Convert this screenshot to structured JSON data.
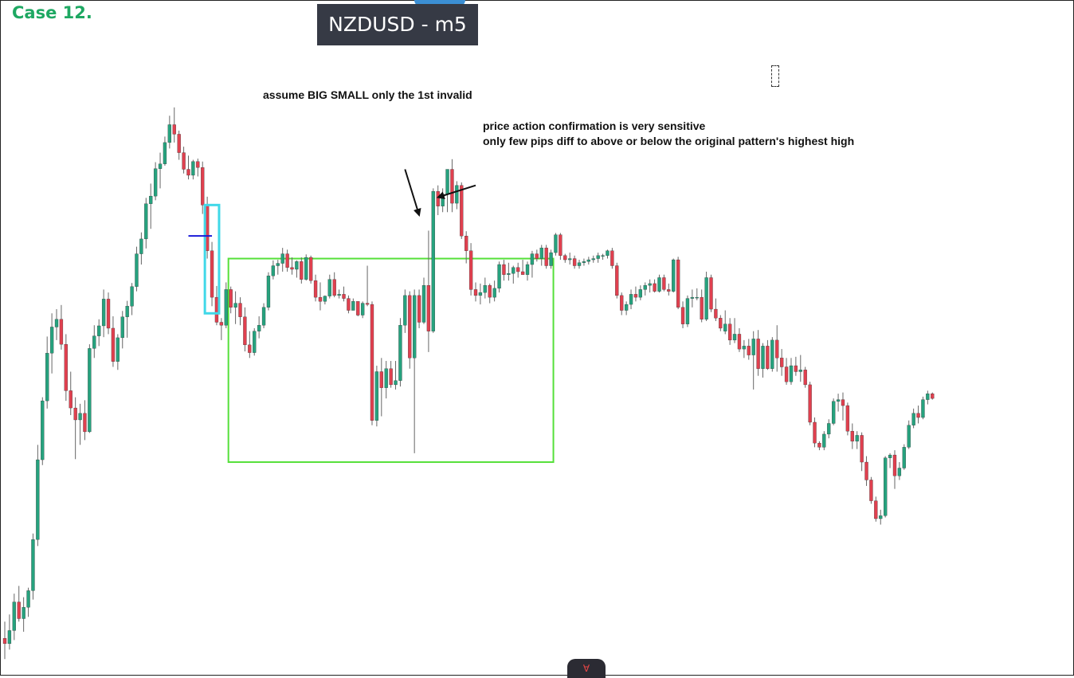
{
  "header": {
    "case_label": "Case 12.",
    "symbol_label": "NZDUSD - m5"
  },
  "annotations": {
    "note_1": "assume BIG SMALL only the 1st invalid",
    "note_2_line_1": "price action confirmation is very sensitive",
    "note_2_line_2": "only few pips diff to above or below the original pattern's highest high"
  },
  "bottom_tab": {
    "icon": "logo-glyph"
  },
  "colors": {
    "bull": "#26a27e",
    "bear": "#e0404f",
    "wick": "#666666",
    "range_box": "#55e03a",
    "highlight_box": "#40d8e8",
    "level_line": "#1a1ad8",
    "case_title": "#1ea862",
    "badge_bg": "#363a45"
  },
  "chart_data": {
    "type": "candlestick",
    "title": "NZDUSD - m5",
    "xlabel": "",
    "ylabel": "",
    "price_axis": "hidden",
    "ylim": [
      0,
      100
    ],
    "candles": [
      {
        "o": 4.8,
        "h": 7.6,
        "l": 1.3,
        "c": 3.9
      },
      {
        "o": 3.9,
        "h": 8.8,
        "l": 2.9,
        "c": 6.1
      },
      {
        "o": 6.1,
        "h": 12.3,
        "l": 4.5,
        "c": 10.9
      },
      {
        "o": 10.9,
        "h": 13.6,
        "l": 7.6,
        "c": 8.1
      },
      {
        "o": 8.1,
        "h": 11.7,
        "l": 5.9,
        "c": 10.0
      },
      {
        "o": 10.0,
        "h": 13.3,
        "l": 8.4,
        "c": 12.8
      },
      {
        "o": 12.8,
        "h": 22.4,
        "l": 11.3,
        "c": 21.4
      },
      {
        "o": 21.4,
        "h": 37.3,
        "l": 20.3,
        "c": 34.8
      },
      {
        "o": 34.8,
        "h": 45.3,
        "l": 33.9,
        "c": 44.7
      },
      {
        "o": 44.7,
        "h": 55.5,
        "l": 43.4,
        "c": 52.7
      },
      {
        "o": 52.7,
        "h": 59.4,
        "l": 49.3,
        "c": 57.1
      },
      {
        "o": 57.1,
        "h": 60.1,
        "l": 54.9,
        "c": 58.4
      },
      {
        "o": 58.4,
        "h": 60.8,
        "l": 53.3,
        "c": 54.2
      },
      {
        "o": 54.2,
        "h": 55.9,
        "l": 44.7,
        "c": 46.4
      },
      {
        "o": 46.4,
        "h": 49.6,
        "l": 42.3,
        "c": 43.5
      },
      {
        "o": 43.5,
        "h": 45.3,
        "l": 34.9,
        "c": 41.5
      },
      {
        "o": 41.5,
        "h": 44.2,
        "l": 37.3,
        "c": 42.6
      },
      {
        "o": 42.6,
        "h": 44.8,
        "l": 38.1,
        "c": 39.5
      },
      {
        "o": 39.5,
        "h": 54.2,
        "l": 39.3,
        "c": 53.5
      },
      {
        "o": 53.5,
        "h": 57.4,
        "l": 51.9,
        "c": 55.6
      },
      {
        "o": 55.6,
        "h": 58.4,
        "l": 53.9,
        "c": 57.3
      },
      {
        "o": 57.3,
        "h": 63.4,
        "l": 55.4,
        "c": 61.8
      },
      {
        "o": 61.8,
        "h": 62.9,
        "l": 55.9,
        "c": 56.9
      },
      {
        "o": 56.9,
        "h": 58.9,
        "l": 50.4,
        "c": 51.3
      },
      {
        "o": 51.3,
        "h": 55.9,
        "l": 49.9,
        "c": 55.3
      },
      {
        "o": 55.3,
        "h": 59.8,
        "l": 53.5,
        "c": 58.8
      },
      {
        "o": 58.8,
        "h": 61.5,
        "l": 55.3,
        "c": 60.6
      },
      {
        "o": 60.6,
        "h": 64.5,
        "l": 59.1,
        "c": 63.9
      },
      {
        "o": 63.9,
        "h": 70.6,
        "l": 63.1,
        "c": 69.4
      },
      {
        "o": 69.4,
        "h": 73.0,
        "l": 67.6,
        "c": 71.9
      },
      {
        "o": 71.9,
        "h": 78.8,
        "l": 70.3,
        "c": 77.8
      },
      {
        "o": 77.8,
        "h": 81.2,
        "l": 73.6,
        "c": 79.1
      },
      {
        "o": 79.1,
        "h": 84.8,
        "l": 78.4,
        "c": 83.7
      },
      {
        "o": 83.7,
        "h": 86.4,
        "l": 80.4,
        "c": 84.5
      },
      {
        "o": 84.5,
        "h": 89.1,
        "l": 84.2,
        "c": 88.1
      },
      {
        "o": 88.1,
        "h": 92.6,
        "l": 87.1,
        "c": 91.1
      },
      {
        "o": 91.1,
        "h": 94.0,
        "l": 88.1,
        "c": 89.5
      },
      {
        "o": 89.5,
        "h": 90.1,
        "l": 85.2,
        "c": 86.4
      },
      {
        "o": 86.4,
        "h": 87.4,
        "l": 82.9,
        "c": 83.6
      },
      {
        "o": 83.6,
        "h": 85.9,
        "l": 81.9,
        "c": 82.6
      },
      {
        "o": 82.6,
        "h": 85.2,
        "l": 81.9,
        "c": 84.9
      },
      {
        "o": 84.9,
        "h": 85.4,
        "l": 82.4,
        "c": 83.9
      },
      {
        "o": 83.9,
        "h": 84.9,
        "l": 76.1,
        "c": 77.6
      },
      {
        "o": 77.6,
        "h": 79.0,
        "l": 68.6,
        "c": 69.9
      },
      {
        "o": 69.9,
        "h": 71.4,
        "l": 60.6,
        "c": 62.1
      },
      {
        "o": 62.1,
        "h": 64.0,
        "l": 57.4,
        "c": 57.9
      },
      {
        "o": 57.9,
        "h": 58.6,
        "l": 54.9,
        "c": 57.4
      },
      {
        "o": 57.4,
        "h": 64.6,
        "l": 56.9,
        "c": 63.4
      },
      {
        "o": 63.4,
        "h": 63.9,
        "l": 59.4,
        "c": 60.4
      },
      {
        "o": 60.4,
        "h": 63.1,
        "l": 57.6,
        "c": 61.1
      },
      {
        "o": 61.1,
        "h": 62.1,
        "l": 57.4,
        "c": 58.8
      },
      {
        "o": 58.8,
        "h": 60.4,
        "l": 53.0,
        "c": 54.1
      },
      {
        "o": 54.1,
        "h": 56.4,
        "l": 51.9,
        "c": 52.8
      },
      {
        "o": 52.8,
        "h": 56.9,
        "l": 52.3,
        "c": 56.4
      },
      {
        "o": 56.4,
        "h": 58.9,
        "l": 55.2,
        "c": 57.4
      },
      {
        "o": 57.4,
        "h": 61.1,
        "l": 56.9,
        "c": 60.4
      },
      {
        "o": 60.4,
        "h": 66.3,
        "l": 59.9,
        "c": 65.7
      },
      {
        "o": 65.7,
        "h": 68.3,
        "l": 65.1,
        "c": 67.4
      },
      {
        "o": 67.4,
        "h": 68.4,
        "l": 65.9,
        "c": 67.8
      },
      {
        "o": 67.8,
        "h": 70.4,
        "l": 66.4,
        "c": 69.4
      },
      {
        "o": 69.4,
        "h": 70.1,
        "l": 66.4,
        "c": 67.1
      },
      {
        "o": 67.1,
        "h": 68.8,
        "l": 65.9,
        "c": 66.8
      },
      {
        "o": 66.8,
        "h": 68.3,
        "l": 65.4,
        "c": 68.1
      },
      {
        "o": 68.1,
        "h": 68.8,
        "l": 64.4,
        "c": 65.1
      },
      {
        "o": 65.1,
        "h": 69.3,
        "l": 64.9,
        "c": 68.8
      },
      {
        "o": 68.8,
        "h": 69.1,
        "l": 64.4,
        "c": 64.9
      },
      {
        "o": 64.9,
        "h": 65.9,
        "l": 61.4,
        "c": 62.1
      },
      {
        "o": 62.1,
        "h": 64.6,
        "l": 59.9,
        "c": 61.4
      },
      {
        "o": 61.4,
        "h": 62.4,
        "l": 60.9,
        "c": 62.3
      },
      {
        "o": 62.3,
        "h": 65.9,
        "l": 61.9,
        "c": 65.1
      },
      {
        "o": 65.1,
        "h": 66.3,
        "l": 62.1,
        "c": 62.4
      },
      {
        "o": 62.4,
        "h": 63.4,
        "l": 61.9,
        "c": 62.6
      },
      {
        "o": 62.6,
        "h": 63.9,
        "l": 61.4,
        "c": 61.9
      },
      {
        "o": 61.9,
        "h": 62.4,
        "l": 59.4,
        "c": 59.9
      },
      {
        "o": 59.9,
        "h": 61.9,
        "l": 59.9,
        "c": 61.4
      },
      {
        "o": 61.4,
        "h": 61.4,
        "l": 58.9,
        "c": 59.1
      },
      {
        "o": 59.1,
        "h": 61.4,
        "l": 58.6,
        "c": 61.1
      },
      {
        "o": 61.1,
        "h": 67.4,
        "l": 60.6,
        "c": 60.9
      },
      {
        "o": 60.9,
        "h": 61.4,
        "l": 40.6,
        "c": 41.4
      },
      {
        "o": 41.4,
        "h": 50.6,
        "l": 40.4,
        "c": 49.6
      },
      {
        "o": 49.6,
        "h": 51.9,
        "l": 42.1,
        "c": 46.9
      },
      {
        "o": 46.9,
        "h": 51.4,
        "l": 45.1,
        "c": 50.1
      },
      {
        "o": 50.1,
        "h": 51.4,
        "l": 46.9,
        "c": 47.4
      },
      {
        "o": 47.4,
        "h": 51.4,
        "l": 46.6,
        "c": 48.1
      },
      {
        "o": 48.1,
        "h": 58.6,
        "l": 47.1,
        "c": 57.4
      },
      {
        "o": 57.4,
        "h": 63.4,
        "l": 56.1,
        "c": 62.4
      },
      {
        "o": 62.4,
        "h": 63.1,
        "l": 50.1,
        "c": 51.9
      },
      {
        "o": 51.9,
        "h": 63.4,
        "l": 35.9,
        "c": 62.4
      },
      {
        "o": 62.4,
        "h": 63.4,
        "l": 56.9,
        "c": 57.9
      },
      {
        "o": 57.9,
        "h": 65.4,
        "l": 57.6,
        "c": 64.1
      },
      {
        "o": 64.1,
        "h": 73.3,
        "l": 52.9,
        "c": 56.4
      },
      {
        "o": 56.4,
        "h": 80.4,
        "l": 56.1,
        "c": 79.9
      },
      {
        "o": 79.9,
        "h": 80.9,
        "l": 75.9,
        "c": 77.4
      },
      {
        "o": 77.4,
        "h": 80.4,
        "l": 76.4,
        "c": 79.4
      },
      {
        "o": 79.4,
        "h": 83.2,
        "l": 76.4,
        "c": 83.6
      },
      {
        "o": 83.6,
        "h": 85.3,
        "l": 76.4,
        "c": 77.9
      },
      {
        "o": 77.9,
        "h": 81.6,
        "l": 76.9,
        "c": 80.9
      },
      {
        "o": 80.9,
        "h": 81.4,
        "l": 71.9,
        "c": 72.4
      },
      {
        "o": 72.4,
        "h": 73.2,
        "l": 67.8,
        "c": 69.9
      },
      {
        "o": 69.9,
        "h": 71.2,
        "l": 62.4,
        "c": 63.4
      },
      {
        "o": 63.4,
        "h": 64.6,
        "l": 61.4,
        "c": 62.4
      },
      {
        "o": 62.4,
        "h": 64.4,
        "l": 60.9,
        "c": 62.9
      },
      {
        "o": 62.9,
        "h": 65.4,
        "l": 61.9,
        "c": 64.1
      },
      {
        "o": 64.1,
        "h": 64.4,
        "l": 61.1,
        "c": 62.1
      },
      {
        "o": 62.1,
        "h": 64.9,
        "l": 61.4,
        "c": 63.6
      },
      {
        "o": 63.6,
        "h": 68.1,
        "l": 62.9,
        "c": 67.6
      },
      {
        "o": 67.6,
        "h": 68.4,
        "l": 64.9,
        "c": 65.9
      },
      {
        "o": 65.9,
        "h": 67.9,
        "l": 64.9,
        "c": 66.1
      },
      {
        "o": 66.1,
        "h": 67.4,
        "l": 64.4,
        "c": 67.1
      },
      {
        "o": 67.1,
        "h": 67.9,
        "l": 65.4,
        "c": 66.4
      },
      {
        "o": 66.4,
        "h": 68.4,
        "l": 65.9,
        "c": 65.9
      },
      {
        "o": 65.9,
        "h": 68.1,
        "l": 64.9,
        "c": 67.6
      },
      {
        "o": 67.6,
        "h": 69.9,
        "l": 65.4,
        "c": 69.4
      },
      {
        "o": 69.4,
        "h": 70.1,
        "l": 68.1,
        "c": 68.6
      },
      {
        "o": 68.6,
        "h": 70.9,
        "l": 67.4,
        "c": 70.4
      },
      {
        "o": 70.4,
        "h": 70.9,
        "l": 66.9,
        "c": 67.4
      },
      {
        "o": 67.4,
        "h": 70.1,
        "l": 66.9,
        "c": 69.6
      },
      {
        "o": 69.6,
        "h": 72.9,
        "l": 69.1,
        "c": 72.6
      },
      {
        "o": 72.6,
        "h": 72.9,
        "l": 68.4,
        "c": 69.1
      },
      {
        "o": 69.1,
        "h": 69.4,
        "l": 67.9,
        "c": 68.4
      },
      {
        "o": 68.4,
        "h": 69.6,
        "l": 67.6,
        "c": 68.6
      },
      {
        "o": 68.6,
        "h": 69.1,
        "l": 66.9,
        "c": 67.4
      },
      {
        "o": 67.4,
        "h": 68.4,
        "l": 66.9,
        "c": 67.9
      },
      {
        "o": 67.9,
        "h": 68.6,
        "l": 67.4,
        "c": 68.1
      },
      {
        "o": 68.1,
        "h": 68.9,
        "l": 67.6,
        "c": 68.4
      },
      {
        "o": 68.4,
        "h": 69.1,
        "l": 67.9,
        "c": 68.6
      },
      {
        "o": 68.6,
        "h": 69.6,
        "l": 67.9,
        "c": 69.1
      },
      {
        "o": 69.1,
        "h": 69.4,
        "l": 68.4,
        "c": 69.1
      },
      {
        "o": 69.1,
        "h": 70.1,
        "l": 68.6,
        "c": 69.9
      },
      {
        "o": 69.9,
        "h": 70.4,
        "l": 66.9,
        "c": 67.4
      },
      {
        "o": 67.4,
        "h": 67.9,
        "l": 61.9,
        "c": 62.4
      },
      {
        "o": 62.4,
        "h": 62.9,
        "l": 59.1,
        "c": 59.9
      },
      {
        "o": 59.9,
        "h": 61.4,
        "l": 59.1,
        "c": 60.9
      },
      {
        "o": 60.9,
        "h": 63.4,
        "l": 60.1,
        "c": 62.6
      },
      {
        "o": 62.6,
        "h": 63.9,
        "l": 61.4,
        "c": 62.1
      },
      {
        "o": 62.1,
        "h": 64.1,
        "l": 61.6,
        "c": 63.4
      },
      {
        "o": 63.4,
        "h": 64.6,
        "l": 62.4,
        "c": 64.1
      },
      {
        "o": 64.1,
        "h": 65.1,
        "l": 62.9,
        "c": 64.4
      },
      {
        "o": 64.4,
        "h": 65.1,
        "l": 62.9,
        "c": 63.1
      },
      {
        "o": 63.1,
        "h": 65.9,
        "l": 62.9,
        "c": 65.4
      },
      {
        "o": 65.4,
        "h": 65.9,
        "l": 63.1,
        "c": 63.4
      },
      {
        "o": 63.4,
        "h": 64.4,
        "l": 62.4,
        "c": 63.1
      },
      {
        "o": 63.1,
        "h": 68.6,
        "l": 62.9,
        "c": 68.4
      },
      {
        "o": 68.4,
        "h": 68.9,
        "l": 60.1,
        "c": 60.4
      },
      {
        "o": 60.4,
        "h": 61.4,
        "l": 56.9,
        "c": 57.6
      },
      {
        "o": 57.6,
        "h": 62.4,
        "l": 57.1,
        "c": 61.9
      },
      {
        "o": 61.9,
        "h": 63.4,
        "l": 60.4,
        "c": 62.1
      },
      {
        "o": 62.1,
        "h": 63.6,
        "l": 61.6,
        "c": 62.1
      },
      {
        "o": 62.1,
        "h": 63.4,
        "l": 57.9,
        "c": 58.4
      },
      {
        "o": 58.4,
        "h": 66.4,
        "l": 58.1,
        "c": 65.4
      },
      {
        "o": 65.4,
        "h": 65.9,
        "l": 59.6,
        "c": 60.1
      },
      {
        "o": 60.1,
        "h": 61.9,
        "l": 58.1,
        "c": 58.6
      },
      {
        "o": 58.6,
        "h": 59.1,
        "l": 56.4,
        "c": 56.9
      },
      {
        "o": 56.4,
        "h": 59.9,
        "l": 55.9,
        "c": 57.6
      },
      {
        "o": 57.6,
        "h": 58.6,
        "l": 54.1,
        "c": 54.9
      },
      {
        "o": 54.9,
        "h": 58.6,
        "l": 54.4,
        "c": 55.9
      },
      {
        "o": 55.9,
        "h": 56.9,
        "l": 52.9,
        "c": 53.4
      },
      {
        "o": 53.4,
        "h": 54.9,
        "l": 51.9,
        "c": 53.9
      },
      {
        "o": 53.9,
        "h": 55.1,
        "l": 51.6,
        "c": 52.4
      },
      {
        "o": 52.4,
        "h": 56.4,
        "l": 46.6,
        "c": 55.1
      },
      {
        "o": 55.1,
        "h": 56.6,
        "l": 48.9,
        "c": 50.1
      },
      {
        "o": 50.1,
        "h": 54.4,
        "l": 48.6,
        "c": 53.9
      },
      {
        "o": 53.9,
        "h": 54.9,
        "l": 49.9,
        "c": 50.1
      },
      {
        "o": 50.1,
        "h": 55.4,
        "l": 49.6,
        "c": 54.9
      },
      {
        "o": 54.9,
        "h": 57.4,
        "l": 49.6,
        "c": 51.9
      },
      {
        "o": 51.9,
        "h": 53.4,
        "l": 48.9,
        "c": 50.4
      },
      {
        "o": 50.4,
        "h": 51.9,
        "l": 47.4,
        "c": 47.9
      },
      {
        "o": 47.9,
        "h": 51.9,
        "l": 47.4,
        "c": 50.6
      },
      {
        "o": 50.6,
        "h": 52.1,
        "l": 48.9,
        "c": 49.6
      },
      {
        "o": 49.6,
        "h": 52.4,
        "l": 47.9,
        "c": 49.9
      },
      {
        "o": 49.9,
        "h": 50.4,
        "l": 46.9,
        "c": 47.4
      },
      {
        "o": 47.4,
        "h": 47.9,
        "l": 40.6,
        "c": 41.1
      },
      {
        "o": 41.1,
        "h": 41.9,
        "l": 36.9,
        "c": 37.6
      },
      {
        "o": 37.6,
        "h": 37.9,
        "l": 36.4,
        "c": 36.9
      },
      {
        "o": 36.9,
        "h": 39.6,
        "l": 36.4,
        "c": 39.1
      },
      {
        "o": 39.1,
        "h": 41.6,
        "l": 38.4,
        "c": 40.9
      },
      {
        "o": 40.9,
        "h": 45.1,
        "l": 40.6,
        "c": 44.6
      },
      {
        "o": 44.6,
        "h": 45.9,
        "l": 42.9,
        "c": 44.9
      },
      {
        "o": 44.9,
        "h": 46.1,
        "l": 41.4,
        "c": 43.9
      },
      {
        "o": 43.9,
        "h": 44.4,
        "l": 38.9,
        "c": 39.6
      },
      {
        "o": 39.6,
        "h": 40.9,
        "l": 36.6,
        "c": 37.9
      },
      {
        "o": 37.9,
        "h": 39.6,
        "l": 36.6,
        "c": 38.9
      },
      {
        "o": 38.9,
        "h": 39.4,
        "l": 32.9,
        "c": 34.4
      },
      {
        "o": 34.4,
        "h": 35.4,
        "l": 30.4,
        "c": 31.4
      },
      {
        "o": 31.4,
        "h": 31.9,
        "l": 27.4,
        "c": 27.9
      },
      {
        "o": 27.9,
        "h": 28.6,
        "l": 24.4,
        "c": 24.9
      },
      {
        "o": 24.9,
        "h": 26.4,
        "l": 23.9,
        "c": 25.4
      },
      {
        "o": 25.4,
        "h": 35.4,
        "l": 25.1,
        "c": 35.1
      },
      {
        "o": 35.1,
        "h": 35.9,
        "l": 33.4,
        "c": 35.6
      },
      {
        "o": 35.6,
        "h": 36.4,
        "l": 29.9,
        "c": 32.1
      },
      {
        "o": 32.1,
        "h": 34.4,
        "l": 31.4,
        "c": 33.4
      },
      {
        "o": 33.4,
        "h": 37.4,
        "l": 33.1,
        "c": 36.9
      },
      {
        "o": 36.9,
        "h": 41.4,
        "l": 36.6,
        "c": 40.6
      },
      {
        "o": 40.6,
        "h": 43.4,
        "l": 40.1,
        "c": 42.6
      },
      {
        "o": 42.6,
        "h": 43.9,
        "l": 40.9,
        "c": 41.9
      },
      {
        "o": 41.9,
        "h": 45.4,
        "l": 41.6,
        "c": 44.9
      },
      {
        "o": 44.9,
        "h": 46.4,
        "l": 44.1,
        "c": 45.9
      },
      {
        "o": 45.9,
        "h": 46.1,
        "l": 44.9,
        "c": 45.1
      }
    ],
    "overlays": {
      "range_box": {
        "start_index": 48,
        "end_index": 116,
        "top": 68.6,
        "bottom": 34.4
      },
      "highlight_box": {
        "start_index": 43,
        "end_index": 45,
        "top": 77.6,
        "bottom": 59.4
      },
      "level_line": {
        "start_index": 39,
        "end_index": 44,
        "price": 72.4
      },
      "arrows": [
        {
          "from_index": 85,
          "from_price": 83.6,
          "to_index": 88,
          "to_price": 75.9
        },
        {
          "from_index": 100,
          "from_price": 80.9,
          "to_index": 92,
          "to_price": 78.9
        }
      ]
    }
  }
}
